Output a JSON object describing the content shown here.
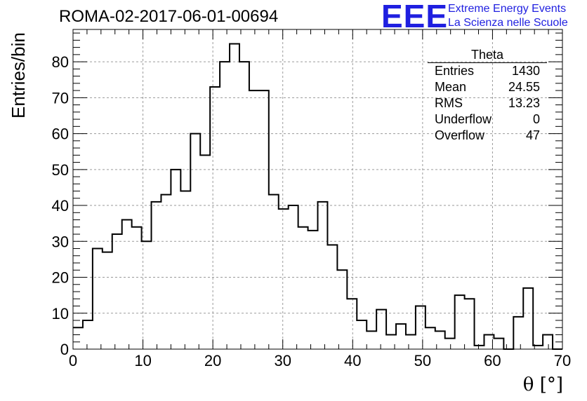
{
  "header": {
    "title": "ROMA-02-2017-06-01-00694",
    "logo_text": "EEE",
    "logo_line1": "Extreme Energy Events",
    "logo_line2": "La Scienza nelle Scuole",
    "logo_color": "#1f1fe0"
  },
  "stats_box": {
    "title": "Theta",
    "rows": [
      {
        "label": "Entries",
        "value": "1430"
      },
      {
        "label": "Mean",
        "value": "24.55"
      },
      {
        "label": "RMS",
        "value": "13.23"
      },
      {
        "label": "Underflow",
        "value": "0"
      },
      {
        "label": "Overflow",
        "value": "47"
      }
    ]
  },
  "chart_data": {
    "type": "bar",
    "style": "step-histogram",
    "title": "ROMA-02-2017-06-01-00694",
    "xlabel": "θ [°]",
    "ylabel": "Entries/bin",
    "xlim": [
      0,
      70
    ],
    "ylim": [
      0,
      89
    ],
    "bin_width": 1.4,
    "x_ticks": [
      0,
      10,
      20,
      30,
      40,
      50,
      60,
      70
    ],
    "y_ticks": [
      0,
      10,
      20,
      30,
      40,
      50,
      60,
      70,
      80
    ],
    "grid": true,
    "values": [
      6,
      8,
      28,
      27,
      32,
      36,
      34,
      30,
      41,
      43,
      50,
      44,
      60,
      54,
      73,
      80,
      85,
      80,
      72,
      72,
      43,
      39,
      40,
      34,
      33,
      41,
      29,
      22,
      14,
      8,
      5,
      11,
      4,
      7,
      4,
      12,
      6,
      5,
      3,
      15,
      14,
      1,
      4,
      3,
      0,
      9,
      17,
      1,
      4,
      0
    ]
  }
}
